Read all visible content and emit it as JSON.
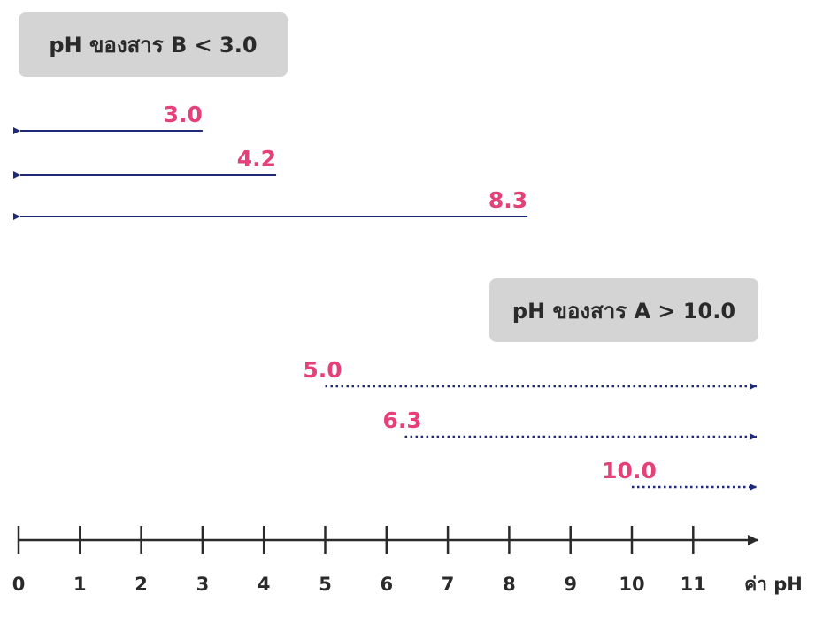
{
  "acid_box": {
    "label": "pH ของสาร B < 3.0"
  },
  "base_box": {
    "label": "pH ของสาร A > 10.0"
  },
  "axis": {
    "ticks": [
      "0",
      "1",
      "2",
      "3",
      "4",
      "5",
      "6",
      "7",
      "8",
      "9",
      "10",
      "11"
    ],
    "unit_label": "ค่า pH",
    "min": 0,
    "max": 11
  },
  "acid_ranges": [
    {
      "value": 3.0,
      "label": "3.0"
    },
    {
      "value": 4.2,
      "label": "4.2"
    },
    {
      "value": 8.3,
      "label": "8.3"
    }
  ],
  "base_ranges": [
    {
      "value": 5.0,
      "label": "5.0"
    },
    {
      "value": 6.3,
      "label": "6.3"
    },
    {
      "value": 10.0,
      "label": "10.0"
    }
  ],
  "colors": {
    "arrow": "#1e2a78",
    "value_text": "#e5407a",
    "axis": "#2a2a2a",
    "box": "#d4d4d4"
  }
}
